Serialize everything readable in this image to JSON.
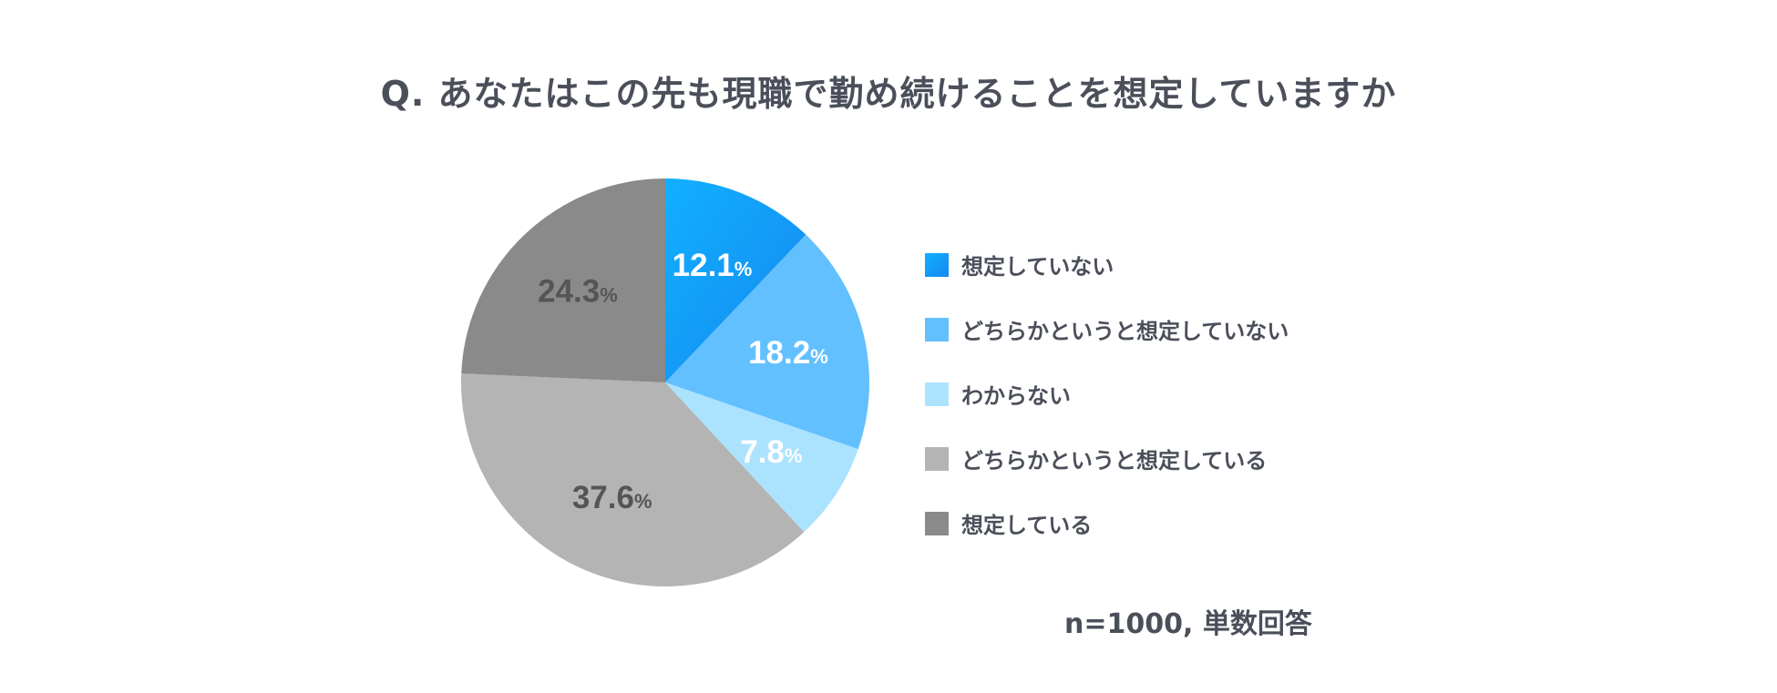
{
  "chart_data": {
    "type": "pie",
    "title": "Q. あなたはこの先も現職で勤め続けることを想定していますか",
    "categories": [
      "想定していない",
      "どちらかというと想定していない",
      "わからない",
      "どちらかというと想定している",
      "想定している"
    ],
    "values": [
      12.1,
      18.2,
      7.8,
      37.6,
      24.3
    ],
    "value_labels": [
      "12.1",
      "18.2",
      "7.8",
      "37.6",
      "24.3"
    ],
    "unit": "%",
    "colors": [
      "#1a9af5",
      "#63c0ff",
      "#abe3ff",
      "#b4b4b4",
      "#8a8a8a"
    ],
    "label_colors": [
      "#ffffff",
      "#ffffff",
      "#ffffff",
      "#555555",
      "#555555"
    ],
    "start_angle": "12 o'clock",
    "direction": "clockwise",
    "legend_position": "right"
  },
  "note": "n=1000, 単数回答"
}
